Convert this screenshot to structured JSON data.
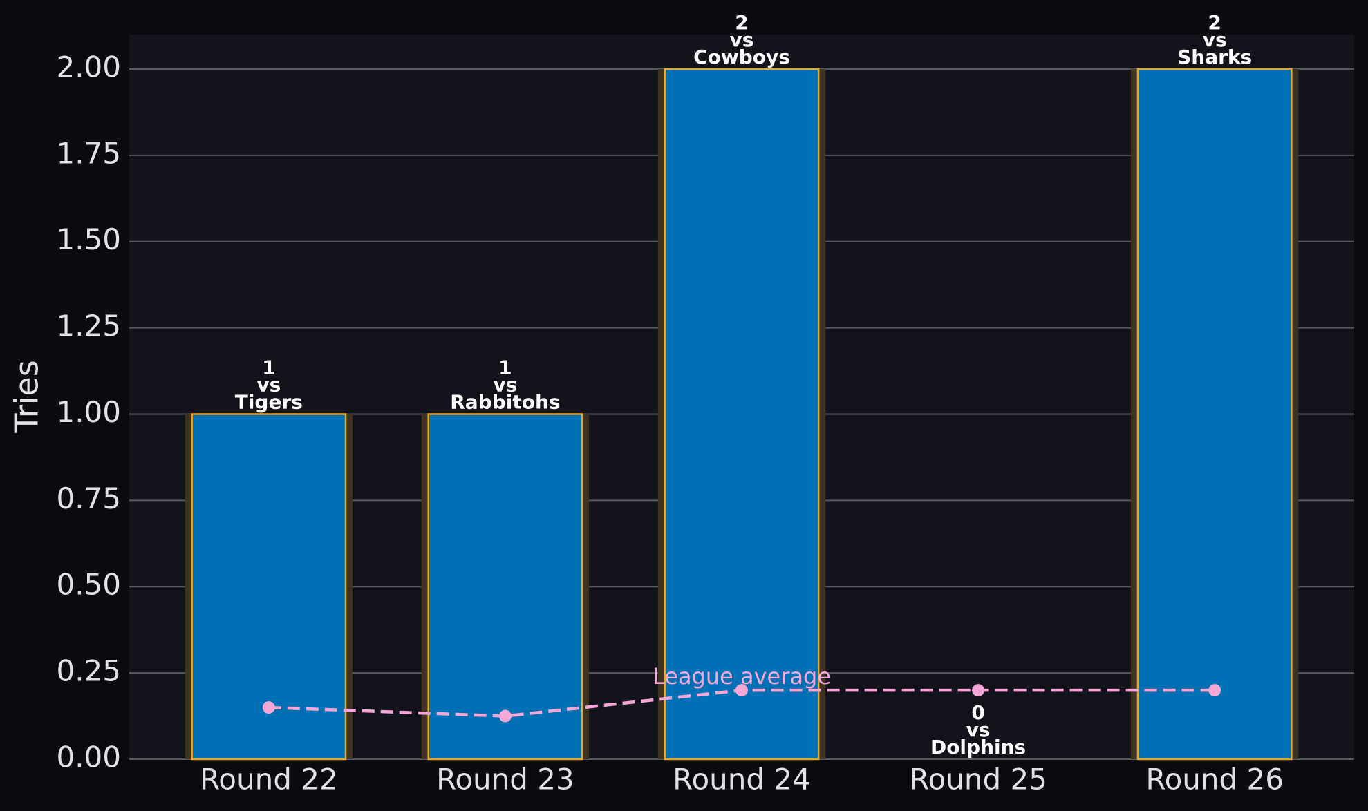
{
  "chart_data": {
    "type": "bar",
    "y_label": "Tries",
    "categories": [
      "Round 22",
      "Round 23",
      "Round 24",
      "Round 25",
      "Round 26"
    ],
    "values": [
      1,
      1,
      2,
      0,
      2
    ],
    "vs_text": "vs",
    "opponents": [
      "Tigers",
      "Rabbitohs",
      "Cowboys",
      "Dolphins",
      "Sharks"
    ],
    "color": "#0070b5",
    "edge_color": "#e8a820",
    "line": {
      "name": "League average",
      "color": "#f5a8d8",
      "style": "dashed",
      "values": [
        0.15,
        0.125,
        0.2,
        0.2,
        0.2
      ]
    },
    "ylim": [
      0,
      2.1
    ],
    "yticks": [
      {
        "value": 0,
        "label": "0.00"
      },
      {
        "value": 0.25,
        "label": "0.25"
      },
      {
        "value": 0.5,
        "label": "0.50"
      },
      {
        "value": 0.75,
        "label": "0.75"
      },
      {
        "value": 1,
        "label": "1.00"
      },
      {
        "value": 1.25,
        "label": "1.25"
      },
      {
        "value": 1.5,
        "label": "1.50"
      },
      {
        "value": 1.75,
        "label": "1.75"
      },
      {
        "value": 2,
        "label": "2.00"
      }
    ],
    "grid": true
  }
}
